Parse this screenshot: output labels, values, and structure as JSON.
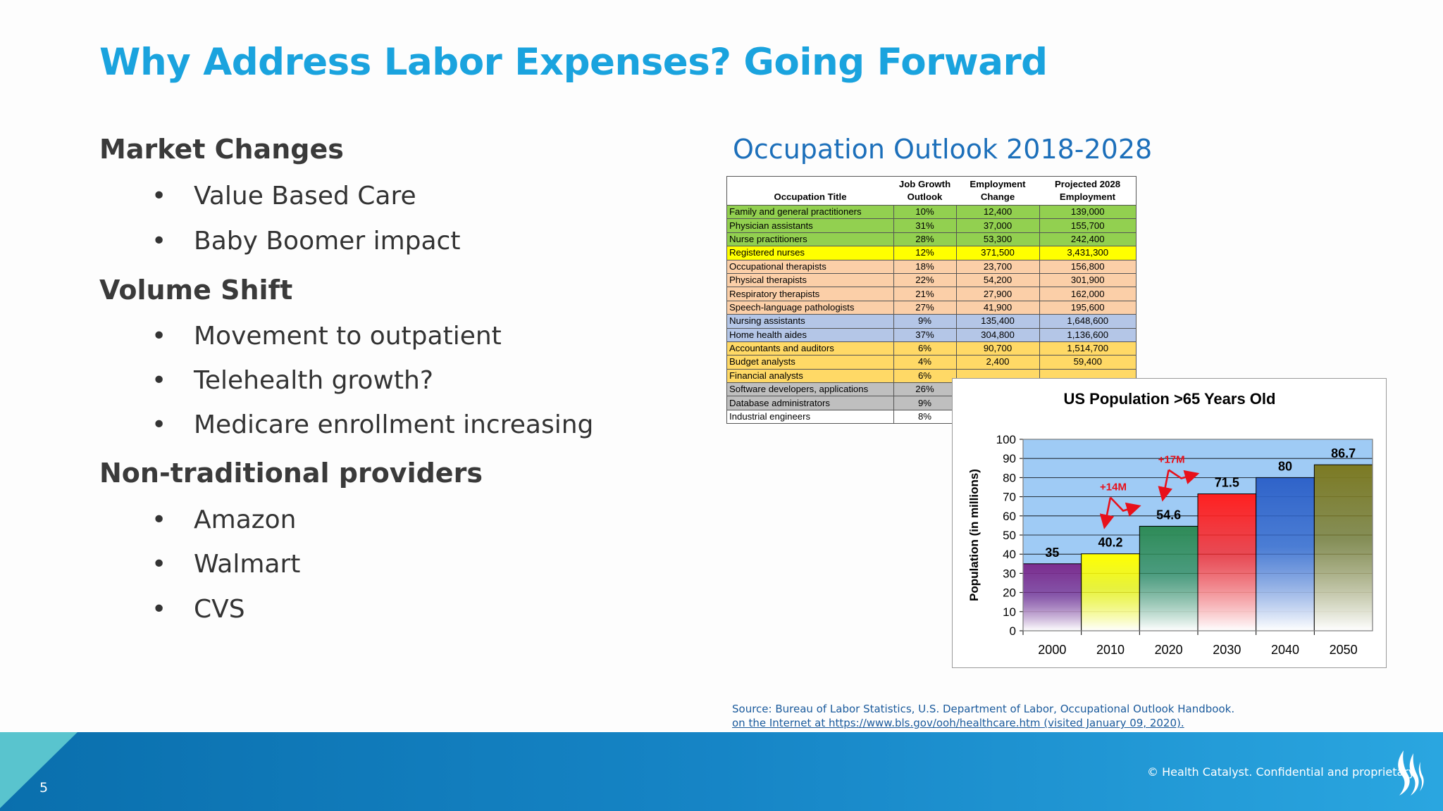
{
  "slide": {
    "title": "Why Address Labor Expenses? Going Forward",
    "page_number": "5",
    "copyright": "© Health Catalyst. Confidential and proprietary."
  },
  "sections": [
    {
      "heading": "Market Changes",
      "bullets": [
        "Value Based Care",
        "Baby Boomer impact"
      ]
    },
    {
      "heading": "Volume Shift",
      "bullets": [
        "Movement to outpatient",
        "Telehealth growth?",
        "Medicare enrollment increasing"
      ]
    },
    {
      "heading": "Non-traditional providers",
      "bullets": [
        "Amazon",
        "Walmart",
        "CVS"
      ]
    }
  ],
  "bullet_glyph": "•",
  "occupation_table": {
    "title": "Occupation Outlook 2018-2028",
    "headers": [
      "Occupation Title",
      "Job Growth Outlook",
      "Employment Change",
      "Projected 2028 Employment"
    ],
    "rows": [
      {
        "cells": [
          "Family and general practitioners",
          "10%",
          "12,400",
          "139,000"
        ],
        "color": "#92d050"
      },
      {
        "cells": [
          "Physician assistants",
          "31%",
          "37,000",
          "155,700"
        ],
        "color": "#92d050"
      },
      {
        "cells": [
          "Nurse practitioners",
          "28%",
          "53,300",
          "242,400"
        ],
        "color": "#92d050"
      },
      {
        "cells": [
          "Registered nurses",
          "12%",
          "371,500",
          "3,431,300"
        ],
        "color": "#ffff00"
      },
      {
        "cells": [
          "Occupational therapists",
          "18%",
          "23,700",
          "156,800"
        ],
        "color": "#fbcfa8"
      },
      {
        "cells": [
          "Physical therapists",
          "22%",
          "54,200",
          "301,900"
        ],
        "color": "#fbcfa8"
      },
      {
        "cells": [
          "Respiratory therapists",
          "21%",
          "27,900",
          "162,000"
        ],
        "color": "#fbcfa8"
      },
      {
        "cells": [
          "Speech-language pathologists",
          "27%",
          "41,900",
          "195,600"
        ],
        "color": "#fbcfa8"
      },
      {
        "cells": [
          "Nursing assistants",
          "9%",
          "135,400",
          "1,648,600"
        ],
        "color": "#b4c6e7"
      },
      {
        "cells": [
          "Home health aides",
          "37%",
          "304,800",
          "1,136,600"
        ],
        "color": "#b4c6e7"
      },
      {
        "cells": [
          "Accountants and auditors",
          "6%",
          "90,700",
          "1,514,700"
        ],
        "color": "#ffd966"
      },
      {
        "cells": [
          "Budget analysts",
          "4%",
          "2,400",
          "59,400"
        ],
        "color": "#ffd966"
      },
      {
        "cells": [
          "Financial analysts",
          "6%",
          "",
          ""
        ],
        "color": "#ffd966"
      },
      {
        "cells": [
          "Software developers, applications",
          "26%",
          "",
          ""
        ],
        "color": "#bfbfbf"
      },
      {
        "cells": [
          "Database administrators",
          "9%",
          "",
          ""
        ],
        "color": "#bfbfbf"
      },
      {
        "cells": [
          "Industrial engineers",
          "8%",
          "",
          ""
        ],
        "color": "#ffffff"
      }
    ]
  },
  "chart_data": {
    "type": "bar",
    "title": "US Population >65 Years Old",
    "ylabel": "Population (in millions)",
    "xlabel": "",
    "categories": [
      "2000",
      "2010",
      "2020",
      "2030",
      "2040",
      "2050"
    ],
    "values": [
      35,
      40.2,
      54.6,
      71.5,
      80,
      86.7
    ],
    "value_labels": [
      "35",
      "40.2",
      "54.6",
      "71.5",
      "80",
      "86.7"
    ],
    "bar_colors": [
      "#7b2c8e",
      "#ffff00",
      "#2e8b57",
      "#ff2020",
      "#2f63c9",
      "#7c7a23"
    ],
    "ylim": [
      0,
      100
    ],
    "yticks": [
      0,
      10,
      20,
      30,
      40,
      50,
      60,
      70,
      80,
      90,
      100
    ],
    "grid": true,
    "plot_background": "#9fcbf5",
    "annotations": [
      {
        "text": "+14M",
        "from": "2010",
        "to": "2020",
        "color": "#e8101a"
      },
      {
        "text": "+17M",
        "from": "2020",
        "to": "2030",
        "color": "#e8101a"
      }
    ]
  },
  "source": {
    "line1": "Source: Bureau of Labor Statistics, U.S. Department of Labor, Occupational Outlook Handbook.",
    "line2": "on the Internet at https://www.bls.gov/ooh/healthcare.htm (visited January 09, 2020)."
  },
  "colors": {
    "title": "#1aa3de",
    "footer_main": "#1b8fd0",
    "footer_dark": "#0a6fad",
    "footer_teal": "#5ec8d0"
  },
  "icons": {
    "logo": "flame-logo-icon"
  }
}
